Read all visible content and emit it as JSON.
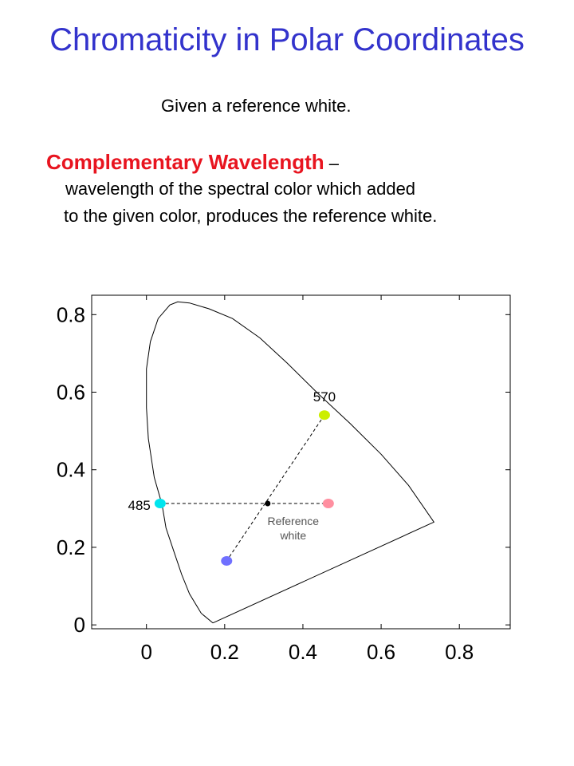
{
  "slide": {
    "title": "Chromaticity in Polar Coordinates",
    "given_text": "Given a reference white.",
    "term": "Complementary Wavelength",
    "dash": " –",
    "definition_line1": "wavelength of the spectral color which added",
    "definition_line2": "to the given color, produces the reference white."
  },
  "chart_data": {
    "type": "scatter",
    "xlim": [
      -0.14,
      0.93
    ],
    "ylim": [
      -0.01,
      0.85
    ],
    "x_ticks": [
      0,
      0.2,
      0.4,
      0.6,
      0.8
    ],
    "x_tick_labels": [
      "0",
      "0.2",
      "0.4",
      "0.6",
      "0.8"
    ],
    "y_ticks": [
      0,
      0.2,
      0.4,
      0.6,
      0.8
    ],
    "y_tick_labels": [
      "0",
      "0.2",
      "0.4",
      "0.6",
      "0.8"
    ],
    "locus": [
      [
        0.17,
        0.005
      ],
      [
        0.14,
        0.03
      ],
      [
        0.11,
        0.08
      ],
      [
        0.09,
        0.13
      ],
      [
        0.07,
        0.19
      ],
      [
        0.05,
        0.25
      ],
      [
        0.04,
        0.31
      ],
      [
        0.02,
        0.38
      ],
      [
        0.005,
        0.48
      ],
      [
        0.0,
        0.56
      ],
      [
        0.0,
        0.66
      ],
      [
        0.01,
        0.73
      ],
      [
        0.03,
        0.79
      ],
      [
        0.06,
        0.825
      ],
      [
        0.08,
        0.833
      ],
      [
        0.11,
        0.83
      ],
      [
        0.16,
        0.815
      ],
      [
        0.22,
        0.79
      ],
      [
        0.29,
        0.74
      ],
      [
        0.36,
        0.675
      ],
      [
        0.44,
        0.595
      ],
      [
        0.52,
        0.52
      ],
      [
        0.6,
        0.44
      ],
      [
        0.67,
        0.36
      ],
      [
        0.735,
        0.265
      ],
      [
        0.17,
        0.005
      ]
    ],
    "points": [
      {
        "label": "570",
        "x": 0.455,
        "y": 0.541,
        "color": "#ccee00"
      },
      {
        "label": "485",
        "x": 0.035,
        "y": 0.313,
        "color": "#00e5ee"
      },
      {
        "label": "",
        "x": 0.465,
        "y": 0.313,
        "color": "#ff8fa0"
      },
      {
        "label": "",
        "x": 0.205,
        "y": 0.165,
        "color": "#7070ff"
      }
    ],
    "reference_white": {
      "x": 0.31,
      "y": 0.313,
      "label_line1": "Reference",
      "label_line2": "white",
      "color": "#000000"
    },
    "dashed_lines": [
      {
        "from": [
          0.035,
          0.313
        ],
        "to": [
          0.465,
          0.313
        ]
      },
      {
        "from": [
          0.455,
          0.541
        ],
        "to": [
          0.205,
          0.165
        ]
      }
    ]
  }
}
